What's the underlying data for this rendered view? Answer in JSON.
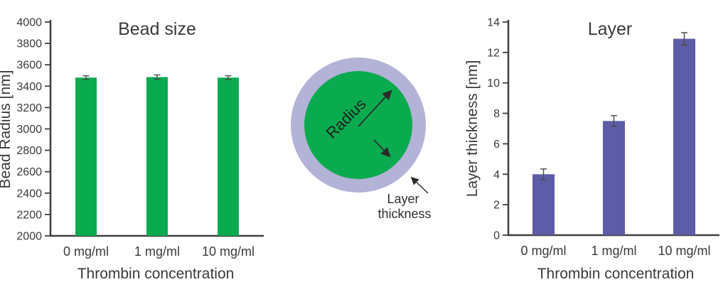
{
  "figure": {
    "background": "#ffffff",
    "text_color": "#3a3a3a",
    "axis_color": "#3f3f3f"
  },
  "chart_data": [
    {
      "type": "bar",
      "title": "Bead size",
      "ylabel": "Bead Radius [nm]",
      "xlabel": "Thrombin concentration",
      "categories": [
        "0 mg/ml",
        "1 mg/ml",
        "10 mg/ml"
      ],
      "values": [
        3480,
        3485,
        3480
      ],
      "errors": [
        17,
        20,
        17
      ],
      "ylim": [
        2000,
        4000
      ],
      "ytick_step": 200,
      "bar_color": "#0aab4f",
      "error_color": "#4a4a4a",
      "grid": false,
      "legend": false
    },
    {
      "type": "bar",
      "title": "Layer",
      "ylabel": "Layer thickness [nm]",
      "xlabel": "Thrombin concentration",
      "categories": [
        "0 mg/ml",
        "1 mg/ml",
        "10 mg/ml"
      ],
      "values": [
        4.0,
        7.5,
        12.9
      ],
      "errors": [
        0.35,
        0.35,
        0.4
      ],
      "ylim": [
        0,
        14
      ],
      "ytick_step": 2,
      "bar_color": "#5d5ca6",
      "error_color": "#4a4a4a",
      "grid": false,
      "legend": false
    }
  ],
  "diagram": {
    "radius_label": "Radius",
    "layer_label_line1": "Layer",
    "layer_label_line2": "thickness",
    "bead_color": "#0aab4f",
    "layer_color": "#b3b2d7",
    "arrow_color": "#2b2b2b"
  }
}
